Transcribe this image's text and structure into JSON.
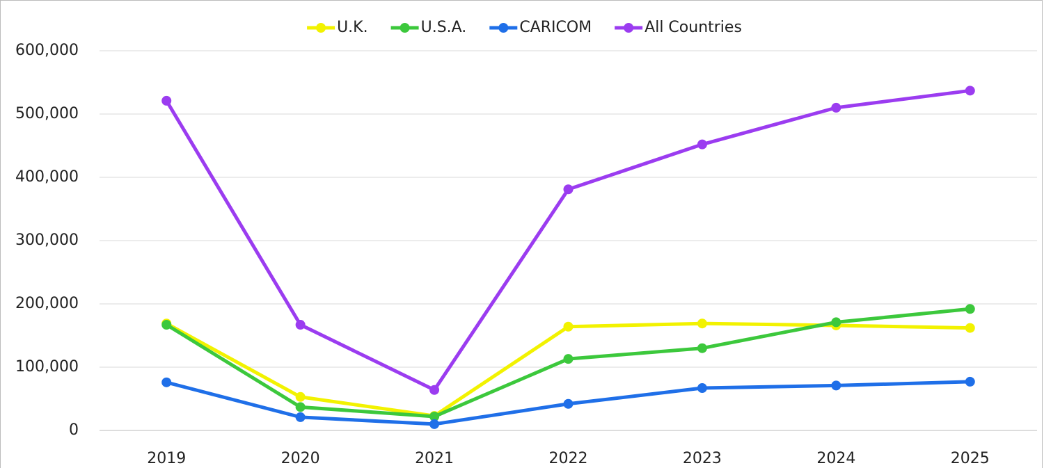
{
  "chart_data": {
    "type": "line",
    "categories": [
      "2019",
      "2020",
      "2021",
      "2022",
      "2023",
      "2024",
      "2025"
    ],
    "series": [
      {
        "name": "U.K.",
        "color": "#f2f200",
        "values": [
          169000,
          53000,
          23000,
          164000,
          169000,
          166000,
          162000
        ]
      },
      {
        "name": "U.S.A.",
        "color": "#3cc83c",
        "values": [
          167000,
          37000,
          22000,
          113000,
          130000,
          171000,
          192000
        ]
      },
      {
        "name": "CARICOM",
        "color": "#1f6fe8",
        "values": [
          76000,
          21000,
          10000,
          42000,
          67000,
          71000,
          77000
        ]
      },
      {
        "name": "All Countries",
        "color": "#9b3cf0",
        "values": [
          521000,
          167000,
          64000,
          381000,
          452000,
          510000,
          537000
        ]
      }
    ],
    "ylim": [
      0,
      600000
    ],
    "yticks": [
      0,
      {
        "value": 100000,
        "label": "100,000"
      },
      {
        "value": 200000,
        "label": "200,000"
      },
      {
        "value": 300000,
        "label": "300,000"
      },
      {
        "value": 400000,
        "label": "400,000"
      },
      {
        "value": 500000,
        "label": "500,000"
      },
      {
        "value": 600000,
        "label": "600,000"
      }
    ],
    "grid": true,
    "legend": "top"
  }
}
